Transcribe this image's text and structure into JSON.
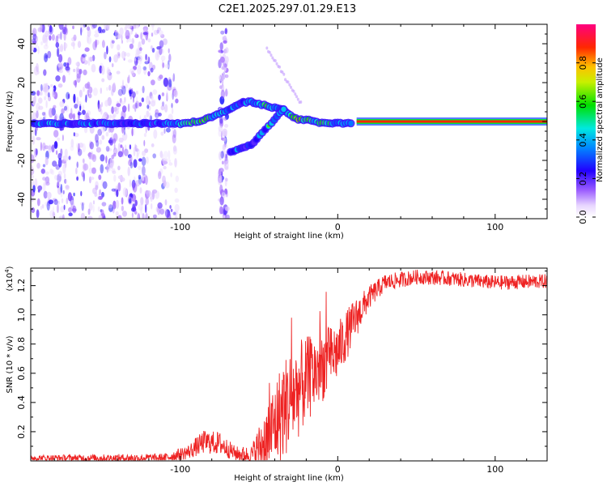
{
  "title": "C2E1.2025.297.01.29.E13",
  "chart_data": [
    {
      "type": "heatmap",
      "name": "spectrogram",
      "xlabel": "Height of straight line (km)",
      "ylabel": "Frequency (Hz)",
      "xlim": [
        -195,
        133
      ],
      "ylim": [
        -50,
        50
      ],
      "xticks": [
        -100,
        0,
        100
      ],
      "yticks": [
        -40,
        -20,
        0,
        20,
        40
      ],
      "colorbar": {
        "label": "Normalized spectral amplitude",
        "ticks": [
          0.0,
          0.2,
          0.4,
          0.6,
          0.8
        ],
        "range": [
          0,
          1
        ]
      },
      "ridge": [
        {
          "x": -193,
          "y": -1,
          "v": 0.35
        },
        {
          "x": -185,
          "y": -1,
          "v": 0.45
        },
        {
          "x": -175,
          "y": -1,
          "v": 0.5
        },
        {
          "x": -165,
          "y": -1,
          "v": 0.4
        },
        {
          "x": -155,
          "y": -1,
          "v": 0.45
        },
        {
          "x": -145,
          "y": -1,
          "v": 0.35
        },
        {
          "x": -135,
          "y": -1,
          "v": 0.3
        },
        {
          "x": -125,
          "y": -1,
          "v": 0.35
        },
        {
          "x": -115,
          "y": -1,
          "v": 0.4
        },
        {
          "x": -105,
          "y": -1,
          "v": 0.45
        },
        {
          "x": -95,
          "y": -1,
          "v": 0.6
        },
        {
          "x": -90,
          "y": 0,
          "v": 0.7
        },
        {
          "x": -85,
          "y": 1,
          "v": 0.75
        },
        {
          "x": -80,
          "y": 2,
          "v": 0.6
        },
        {
          "x": -75,
          "y": 4,
          "v": 0.55
        },
        {
          "x": -70,
          "y": 6,
          "v": 0.5
        },
        {
          "x": -65,
          "y": 8,
          "v": 0.4
        },
        {
          "x": -60,
          "y": 10,
          "v": 0.35
        },
        {
          "x": -55,
          "y": 10,
          "v": 0.5
        },
        {
          "x": -50,
          "y": 9,
          "v": 0.65
        },
        {
          "x": -45,
          "y": 8,
          "v": 0.6
        },
        {
          "x": -40,
          "y": 7,
          "v": 0.55
        },
        {
          "x": -35,
          "y": 6,
          "v": 0.5
        },
        {
          "x": -30,
          "y": 3,
          "v": 0.6
        },
        {
          "x": -25,
          "y": 1,
          "v": 0.75
        },
        {
          "x": -20,
          "y": 1,
          "v": 0.7
        },
        {
          "x": -15,
          "y": 0,
          "v": 0.65
        },
        {
          "x": -10,
          "y": -1,
          "v": 0.7
        },
        {
          "x": -5,
          "y": -1,
          "v": 0.6
        },
        {
          "x": 0,
          "y": -1,
          "v": 0.55
        },
        {
          "x": 5,
          "y": -1,
          "v": 0.6
        },
        {
          "x": 10,
          "y": -1,
          "v": 0.5
        }
      ],
      "branch": [
        {
          "x": -68,
          "y": -16,
          "v": 0.45
        },
        {
          "x": -62,
          "y": -14,
          "v": 0.4
        },
        {
          "x": -55,
          "y": -12,
          "v": 0.35
        },
        {
          "x": -48,
          "y": -6,
          "v": 0.45
        },
        {
          "x": -42,
          "y": -1,
          "v": 0.5
        },
        {
          "x": -37,
          "y": 4,
          "v": 0.55
        },
        {
          "x": -33,
          "y": 8,
          "v": 0.5
        }
      ],
      "steady_line": {
        "x_start": 12,
        "x_end": 133,
        "y": 0,
        "v": 1.0
      }
    },
    {
      "type": "line",
      "name": "snr",
      "xlabel": "Height of straight line (km)",
      "ylabel": "SNR (10 * v/v)",
      "multiplier": "(x10",
      "multiplier_exp": "4",
      "xlim": [
        -195,
        133
      ],
      "ylim": [
        0,
        1.32
      ],
      "xticks": [
        -100,
        0,
        100
      ],
      "yticks": [
        0.2,
        0.4,
        0.6,
        0.8,
        1.0,
        1.2
      ],
      "color": "#ee2222",
      "profile": [
        {
          "x": -195,
          "y": 0.02,
          "n": 0.02
        },
        {
          "x": -110,
          "y": 0.02,
          "n": 0.03
        },
        {
          "x": -95,
          "y": 0.06,
          "n": 0.05
        },
        {
          "x": -85,
          "y": 0.13,
          "n": 0.08
        },
        {
          "x": -75,
          "y": 0.12,
          "n": 0.08
        },
        {
          "x": -65,
          "y": 0.05,
          "n": 0.05
        },
        {
          "x": -55,
          "y": 0.04,
          "n": 0.06
        },
        {
          "x": -45,
          "y": 0.15,
          "n": 0.25
        },
        {
          "x": -35,
          "y": 0.35,
          "n": 0.35
        },
        {
          "x": -28,
          "y": 0.45,
          "n": 0.35
        },
        {
          "x": -20,
          "y": 0.55,
          "n": 0.3
        },
        {
          "x": -10,
          "y": 0.65,
          "n": 0.25
        },
        {
          "x": 0,
          "y": 0.75,
          "n": 0.2
        },
        {
          "x": 10,
          "y": 0.95,
          "n": 0.15
        },
        {
          "x": 20,
          "y": 1.12,
          "n": 0.08
        },
        {
          "x": 30,
          "y": 1.22,
          "n": 0.06
        },
        {
          "x": 50,
          "y": 1.26,
          "n": 0.05
        },
        {
          "x": 70,
          "y": 1.25,
          "n": 0.05
        },
        {
          "x": 100,
          "y": 1.22,
          "n": 0.05
        },
        {
          "x": 133,
          "y": 1.23,
          "n": 0.05
        }
      ]
    }
  ]
}
